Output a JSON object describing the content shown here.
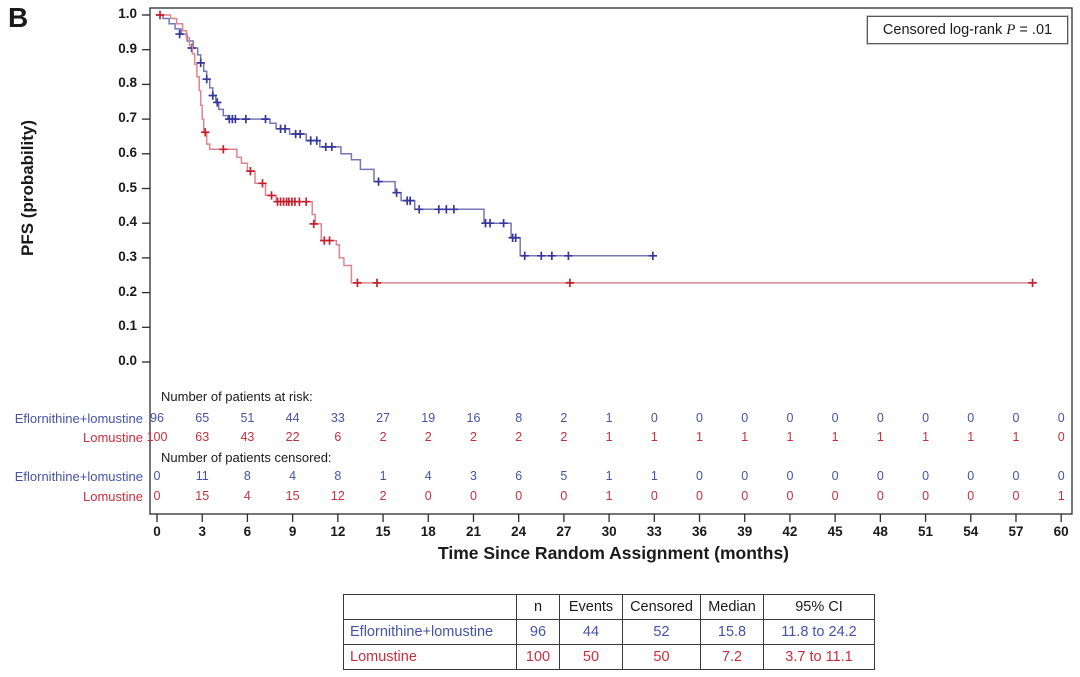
{
  "panel_label": "B",
  "annotation_box": {
    "prefix": "Censored log-rank ",
    "p_symbol": "P",
    "suffix": " = .01"
  },
  "colors": {
    "treatment_blue": "#4553a8",
    "treatment_blue_line": "#7577b7",
    "treatment_blue_censor": "#35359b",
    "control_red": "#c5303c",
    "control_red_line": "#dd868e",
    "control_red_censor": "#c5212f",
    "axis": "#2b2b2b",
    "text": "#1a1a1a"
  },
  "chart_data": {
    "type": "line",
    "subtype": "kaplan-meier-step",
    "title": "",
    "xlabel": "Time Since Random Assignment (months)",
    "ylabel": "PFS (probability)",
    "xlim": [
      0,
      60
    ],
    "ylim": [
      0.0,
      1.0
    ],
    "x_ticks": [
      0,
      3,
      6,
      9,
      12,
      15,
      18,
      21,
      24,
      27,
      30,
      33,
      36,
      39,
      42,
      45,
      48,
      51,
      54,
      57,
      60
    ],
    "y_ticks": [
      1.0,
      0.9,
      0.8,
      0.7,
      0.6,
      0.5,
      0.4,
      0.3,
      0.2,
      0.1,
      0.0
    ],
    "grid": false,
    "legend_position": "none",
    "series": [
      {
        "name": "Eflornithine+lomustine",
        "line_color": "#7577b7",
        "censor_color": "#35359b",
        "end": 33.0,
        "points": [
          [
            0,
            1.0
          ],
          [
            0.4,
            0.99
          ],
          [
            0.8,
            0.975
          ],
          [
            1.2,
            0.96
          ],
          [
            1.6,
            0.945
          ],
          [
            2.0,
            0.925
          ],
          [
            2.4,
            0.905
          ],
          [
            2.7,
            0.885
          ],
          [
            2.9,
            0.862
          ],
          [
            3.1,
            0.838
          ],
          [
            3.3,
            0.815
          ],
          [
            3.5,
            0.79
          ],
          [
            3.7,
            0.768
          ],
          [
            3.9,
            0.748
          ],
          [
            4.1,
            0.728
          ],
          [
            4.4,
            0.71
          ],
          [
            4.7,
            0.7
          ],
          [
            7.5,
            0.688
          ],
          [
            7.9,
            0.672
          ],
          [
            8.8,
            0.657
          ],
          [
            9.9,
            0.638
          ],
          [
            10.8,
            0.62
          ],
          [
            12.2,
            0.6
          ],
          [
            12.9,
            0.583
          ],
          [
            13.5,
            0.555
          ],
          [
            14.4,
            0.52
          ],
          [
            15.8,
            0.488
          ],
          [
            16.2,
            0.465
          ],
          [
            17.1,
            0.44
          ],
          [
            21.7,
            0.4
          ],
          [
            23.5,
            0.358
          ],
          [
            24.1,
            0.306
          ]
        ],
        "censors": [
          [
            1.5,
            0.945
          ],
          [
            2.3,
            0.905
          ],
          [
            2.9,
            0.862
          ],
          [
            3.3,
            0.815
          ],
          [
            3.7,
            0.768
          ],
          [
            4.0,
            0.748
          ],
          [
            4.8,
            0.7
          ],
          [
            5.0,
            0.7
          ],
          [
            5.2,
            0.7
          ],
          [
            5.9,
            0.7
          ],
          [
            7.2,
            0.7
          ],
          [
            8.2,
            0.672
          ],
          [
            8.5,
            0.672
          ],
          [
            9.2,
            0.657
          ],
          [
            9.5,
            0.657
          ],
          [
            10.2,
            0.638
          ],
          [
            10.6,
            0.638
          ],
          [
            11.2,
            0.62
          ],
          [
            11.6,
            0.62
          ],
          [
            14.7,
            0.52
          ],
          [
            15.9,
            0.488
          ],
          [
            16.6,
            0.465
          ],
          [
            16.8,
            0.465
          ],
          [
            17.4,
            0.44
          ],
          [
            18.7,
            0.44
          ],
          [
            19.2,
            0.44
          ],
          [
            19.7,
            0.44
          ],
          [
            21.8,
            0.4
          ],
          [
            22.1,
            0.4
          ],
          [
            23.0,
            0.4
          ],
          [
            23.6,
            0.358
          ],
          [
            23.8,
            0.358
          ],
          [
            24.4,
            0.306
          ],
          [
            25.5,
            0.306
          ],
          [
            26.2,
            0.306
          ],
          [
            27.3,
            0.306
          ],
          [
            32.9,
            0.306
          ]
        ]
      },
      {
        "name": "Lomustine",
        "line_color": "#dd868e",
        "censor_color": "#c5212f",
        "end": 58.2,
        "points": [
          [
            0,
            1.0
          ],
          [
            0.9,
            0.99
          ],
          [
            1.3,
            0.975
          ],
          [
            1.7,
            0.955
          ],
          [
            1.95,
            0.935
          ],
          [
            2.15,
            0.912
          ],
          [
            2.35,
            0.888
          ],
          [
            2.5,
            0.858
          ],
          [
            2.65,
            0.822
          ],
          [
            2.8,
            0.782
          ],
          [
            2.9,
            0.74
          ],
          [
            3.0,
            0.7
          ],
          [
            3.1,
            0.662
          ],
          [
            3.3,
            0.628
          ],
          [
            3.5,
            0.613
          ],
          [
            5.3,
            0.59
          ],
          [
            5.6,
            0.573
          ],
          [
            6.0,
            0.55
          ],
          [
            6.5,
            0.515
          ],
          [
            7.2,
            0.48
          ],
          [
            7.9,
            0.462
          ],
          [
            10.3,
            0.425
          ],
          [
            10.5,
            0.398
          ],
          [
            10.9,
            0.35
          ],
          [
            11.9,
            0.338
          ],
          [
            12.1,
            0.3
          ],
          [
            12.4,
            0.278
          ],
          [
            12.9,
            0.228
          ]
        ],
        "censors": [
          [
            0.2,
            1.0
          ],
          [
            3.2,
            0.662
          ],
          [
            4.4,
            0.613
          ],
          [
            6.2,
            0.55
          ],
          [
            7.0,
            0.515
          ],
          [
            7.6,
            0.48
          ],
          [
            8.0,
            0.462
          ],
          [
            8.2,
            0.462
          ],
          [
            8.4,
            0.462
          ],
          [
            8.6,
            0.462
          ],
          [
            8.75,
            0.462
          ],
          [
            8.95,
            0.462
          ],
          [
            9.15,
            0.462
          ],
          [
            9.45,
            0.462
          ],
          [
            9.9,
            0.462
          ],
          [
            10.4,
            0.398
          ],
          [
            11.1,
            0.35
          ],
          [
            11.45,
            0.35
          ],
          [
            13.3,
            0.228
          ],
          [
            14.6,
            0.228
          ],
          [
            27.4,
            0.228
          ],
          [
            58.1,
            0.228
          ]
        ]
      }
    ],
    "risk_table": {
      "at_risk_label": "Number of patients at risk:",
      "censored_label": "Number of patients censored:",
      "times": [
        0,
        3,
        6,
        9,
        12,
        15,
        18,
        21,
        24,
        27,
        30,
        33,
        36,
        39,
        42,
        45,
        48,
        51,
        54,
        57,
        60
      ],
      "rows": [
        {
          "group": "Eflornithine+lomustine",
          "type": "at_risk",
          "values": [
            96,
            65,
            51,
            44,
            33,
            27,
            19,
            16,
            8,
            2,
            1,
            0,
            0,
            0,
            0,
            0,
            0,
            0,
            0,
            0,
            0
          ]
        },
        {
          "group": "Lomustine",
          "type": "at_risk",
          "values": [
            100,
            63,
            43,
            22,
            6,
            2,
            2,
            2,
            2,
            2,
            1,
            1,
            1,
            1,
            1,
            1,
            1,
            1,
            1,
            1,
            0
          ]
        },
        {
          "group": "Eflornithine+lomustine",
          "type": "censored",
          "values": [
            0,
            11,
            8,
            4,
            8,
            1,
            4,
            3,
            6,
            5,
            1,
            1,
            0,
            0,
            0,
            0,
            0,
            0,
            0,
            0,
            0
          ]
        },
        {
          "group": "Lomustine",
          "type": "censored",
          "values": [
            0,
            15,
            4,
            15,
            12,
            2,
            0,
            0,
            0,
            0,
            1,
            0,
            0,
            0,
            0,
            0,
            0,
            0,
            0,
            0,
            1
          ]
        }
      ]
    }
  },
  "summary_table": {
    "headers": [
      "",
      "n",
      "Events",
      "Censored",
      "Median",
      "95% CI"
    ],
    "rows": [
      {
        "label": "Eflornithine+lomustine",
        "n": "96",
        "events": "44",
        "censored": "52",
        "median": "15.8",
        "ci": "11.8 to 24.2"
      },
      {
        "label": "Lomustine",
        "n": "100",
        "events": "50",
        "censored": "50",
        "median": "7.2",
        "ci": "3.7 to 11.1"
      }
    ]
  }
}
